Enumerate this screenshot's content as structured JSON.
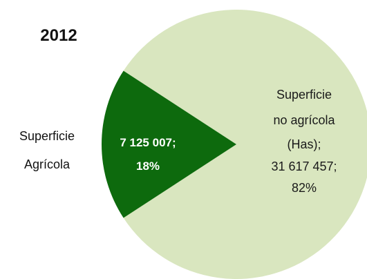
{
  "chart_data": {
    "type": "pie",
    "title": "2012",
    "slices": [
      {
        "name": "Superficie Agrícola",
        "value": 7125007,
        "percent": 18,
        "color": "#0d6a0d",
        "value_label": "7 125 007;",
        "percent_label": "18%",
        "outside_label": [
          "Superficie",
          "Agrícola"
        ]
      },
      {
        "name": "Superficie no agrícola (Has)",
        "value": 31617457,
        "percent": 82,
        "color": "#d9e6bf",
        "label_lines": [
          "Superficie",
          "no agrícola",
          "(Has);",
          "31 617 457;",
          "82%"
        ]
      }
    ]
  }
}
